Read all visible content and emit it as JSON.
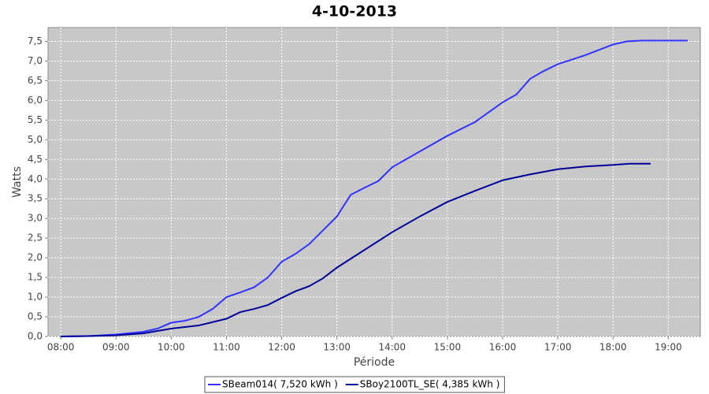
{
  "chart_data": {
    "type": "line",
    "title": "4-10-2013",
    "x_label": "Période",
    "y_label": "Watts",
    "xlim": [
      7.77,
      19.58
    ],
    "ylim": [
      0,
      7.85
    ],
    "xticks": [
      {
        "value": 8,
        "label": "08:00"
      },
      {
        "value": 9,
        "label": "09:00"
      },
      {
        "value": 10,
        "label": "10:00"
      },
      {
        "value": 11,
        "label": "11:00"
      },
      {
        "value": 12,
        "label": "12:00"
      },
      {
        "value": 13,
        "label": "13:00"
      },
      {
        "value": 14,
        "label": "14:00"
      },
      {
        "value": 15,
        "label": "15:00"
      },
      {
        "value": 16,
        "label": "16:00"
      },
      {
        "value": 17,
        "label": "17:00"
      },
      {
        "value": 18,
        "label": "18:00"
      },
      {
        "value": 19,
        "label": "19:00"
      }
    ],
    "yticks": [
      {
        "value": 0,
        "label": "0,0"
      },
      {
        "value": 0.5,
        "label": "0,5"
      },
      {
        "value": 1,
        "label": "1,0"
      },
      {
        "value": 1.5,
        "label": "1,5"
      },
      {
        "value": 2,
        "label": "2,0"
      },
      {
        "value": 2.5,
        "label": "2,5"
      },
      {
        "value": 3,
        "label": "3,0"
      },
      {
        "value": 3.5,
        "label": "3,5"
      },
      {
        "value": 4,
        "label": "4,0"
      },
      {
        "value": 4.5,
        "label": "4,5"
      },
      {
        "value": 5,
        "label": "5,0"
      },
      {
        "value": 5.5,
        "label": "5,5"
      },
      {
        "value": 6,
        "label": "6,0"
      },
      {
        "value": 6.5,
        "label": "6,5"
      },
      {
        "value": 7,
        "label": "7,0"
      },
      {
        "value": 7.5,
        "label": "7,5"
      }
    ],
    "grid": true,
    "legend": "bottom",
    "series": [
      {
        "name": "SBeam014( 7,520 kWh )",
        "color": "#3333ff",
        "x": [
          8.0,
          8.5,
          9.0,
          9.5,
          9.75,
          10.0,
          10.25,
          10.5,
          10.75,
          11.0,
          11.25,
          11.5,
          11.75,
          12.0,
          12.25,
          12.5,
          12.75,
          13.0,
          13.25,
          13.5,
          13.75,
          14.0,
          14.5,
          15.0,
          15.5,
          16.0,
          16.25,
          16.5,
          16.75,
          17.0,
          17.5,
          18.0,
          18.25,
          18.5,
          19.0,
          19.35
        ],
        "values": [
          0,
          0.01,
          0.05,
          0.12,
          0.2,
          0.35,
          0.4,
          0.5,
          0.7,
          1.0,
          1.12,
          1.25,
          1.5,
          1.9,
          2.1,
          2.35,
          2.7,
          3.05,
          3.6,
          3.78,
          3.95,
          4.3,
          4.7,
          5.1,
          5.45,
          5.95,
          6.15,
          6.55,
          6.75,
          6.92,
          7.15,
          7.42,
          7.5,
          7.52,
          7.52,
          7.52
        ]
      },
      {
        "name": "SBoy2100TL_SE( 4,385 kWh )",
        "color": "#000099",
        "x": [
          8.0,
          8.5,
          9.0,
          9.5,
          10.0,
          10.5,
          11.0,
          11.25,
          11.5,
          11.75,
          12.0,
          12.25,
          12.5,
          12.75,
          13.0,
          13.5,
          14.0,
          14.5,
          15.0,
          15.5,
          16.0,
          16.5,
          17.0,
          17.5,
          18.0,
          18.3,
          18.68
        ],
        "values": [
          0,
          0.01,
          0.03,
          0.08,
          0.2,
          0.28,
          0.45,
          0.62,
          0.7,
          0.8,
          0.98,
          1.15,
          1.28,
          1.48,
          1.75,
          2.2,
          2.65,
          3.05,
          3.42,
          3.7,
          3.97,
          4.12,
          4.25,
          4.32,
          4.36,
          4.39,
          4.39
        ]
      }
    ]
  }
}
